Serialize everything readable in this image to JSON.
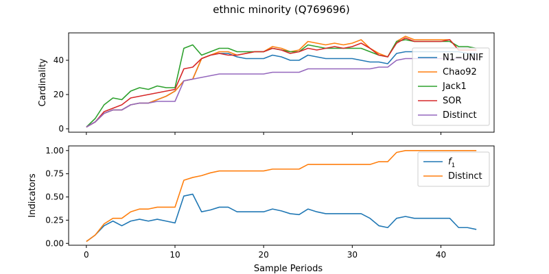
{
  "figure": {
    "title": "ethnic minority (Q769696)"
  },
  "chart_data": [
    {
      "type": "line",
      "ylabel": "Cardinality",
      "xlabel": "",
      "xlim": [
        -2,
        46
      ],
      "ylim": [
        -2,
        56
      ],
      "xticks": [
        0,
        10,
        20,
        30,
        40
      ],
      "yticks": [
        0,
        20,
        40
      ],
      "show_x_tick_labels": false,
      "legend_position": "center-right",
      "x": [
        0,
        1,
        2,
        3,
        4,
        5,
        6,
        7,
        8,
        9,
        10,
        11,
        12,
        13,
        14,
        15,
        16,
        17,
        18,
        19,
        20,
        21,
        22,
        23,
        24,
        25,
        26,
        27,
        28,
        29,
        30,
        31,
        32,
        33,
        34,
        35,
        36,
        37,
        38,
        39,
        40,
        41,
        42,
        43,
        44
      ],
      "series": [
        {
          "name": "N1−UNIF",
          "color": "#1f77b4",
          "values": [
            1,
            4,
            9,
            11,
            11,
            14,
            15,
            15,
            17,
            19,
            22,
            28,
            29,
            41,
            43,
            44,
            44,
            42,
            41,
            41,
            41,
            43,
            42,
            40,
            40,
            43,
            42,
            41,
            41,
            41,
            41,
            40,
            39,
            39,
            38,
            44,
            45,
            45,
            45,
            45,
            45,
            45,
            45,
            44,
            44
          ]
        },
        {
          "name": "Chao92",
          "color": "#ff7f0e",
          "values": [
            1,
            4,
            9,
            11,
            11,
            14,
            15,
            15,
            17,
            19,
            22,
            28,
            29,
            41,
            43,
            45,
            45,
            43,
            44,
            45,
            45,
            48,
            47,
            45,
            46,
            51,
            50,
            49,
            50,
            49,
            50,
            52,
            47,
            44,
            42,
            51,
            54,
            52,
            52,
            52,
            52,
            52,
            46,
            46,
            46
          ]
        },
        {
          "name": "Jack1",
          "color": "#2ca02c",
          "values": [
            1,
            6,
            14,
            18,
            17,
            22,
            24,
            23,
            25,
            24,
            24,
            47,
            49,
            43,
            45,
            47,
            47,
            45,
            45,
            45,
            45,
            47,
            46,
            45,
            45,
            49,
            48,
            47,
            47,
            47,
            47,
            47,
            45,
            43,
            42,
            51,
            52,
            51,
            51,
            51,
            51,
            51,
            48,
            48,
            47
          ]
        },
        {
          "name": "SOR",
          "color": "#d62728",
          "values": [
            1,
            4,
            10,
            12,
            14,
            18,
            19,
            20,
            21,
            22,
            23,
            35,
            36,
            41,
            43,
            44,
            43,
            43,
            44,
            45,
            45,
            47,
            46,
            44,
            45,
            47,
            46,
            47,
            48,
            47,
            48,
            50,
            47,
            43,
            42,
            50,
            53,
            51,
            51,
            51,
            51,
            52,
            46,
            46,
            46
          ]
        },
        {
          "name": "Distinct",
          "color": "#9467bd",
          "values": [
            1,
            4,
            9,
            11,
            11,
            14,
            15,
            15,
            16,
            16,
            16,
            28,
            29,
            30,
            31,
            32,
            32,
            32,
            32,
            32,
            32,
            33,
            33,
            33,
            33,
            35,
            35,
            35,
            35,
            35,
            35,
            35,
            35,
            36,
            36,
            40,
            41,
            41,
            41,
            41,
            41,
            41,
            41,
            41,
            41
          ]
        }
      ]
    },
    {
      "type": "line",
      "ylabel": "Indicators",
      "xlabel": "Sample Periods",
      "xlim": [
        -2,
        46
      ],
      "ylim": [
        -0.02,
        1.05
      ],
      "xticks": [
        0,
        10,
        20,
        30,
        40
      ],
      "yticks": [
        "0.00",
        "0.25",
        "0.50",
        "0.75",
        "1.00"
      ],
      "show_x_tick_labels": true,
      "legend_position": "top-right",
      "x": [
        0,
        1,
        2,
        3,
        4,
        5,
        6,
        7,
        8,
        9,
        10,
        11,
        12,
        13,
        14,
        15,
        16,
        17,
        18,
        19,
        20,
        21,
        22,
        23,
        24,
        25,
        26,
        27,
        28,
        29,
        30,
        31,
        32,
        33,
        34,
        35,
        36,
        37,
        38,
        39,
        40,
        41,
        42,
        43,
        44
      ],
      "series": [
        {
          "name": "f1",
          "label_base": "f",
          "label_sub": "1",
          "color": "#1f77b4",
          "values": [
            0.02,
            0.09,
            0.19,
            0.24,
            0.19,
            0.24,
            0.26,
            0.24,
            0.26,
            0.24,
            0.22,
            0.51,
            0.53,
            0.34,
            0.36,
            0.39,
            0.39,
            0.34,
            0.34,
            0.34,
            0.34,
            0.37,
            0.35,
            0.32,
            0.31,
            0.37,
            0.34,
            0.32,
            0.32,
            0.32,
            0.32,
            0.32,
            0.27,
            0.19,
            0.17,
            0.27,
            0.29,
            0.27,
            0.27,
            0.27,
            0.27,
            0.27,
            0.17,
            0.17,
            0.15
          ]
        },
        {
          "name": "Distinct",
          "color": "#ff7f0e",
          "values": [
            0.02,
            0.09,
            0.21,
            0.27,
            0.27,
            0.34,
            0.37,
            0.37,
            0.39,
            0.39,
            0.39,
            0.68,
            0.71,
            0.73,
            0.76,
            0.78,
            0.78,
            0.78,
            0.78,
            0.78,
            0.78,
            0.8,
            0.8,
            0.8,
            0.8,
            0.85,
            0.85,
            0.85,
            0.85,
            0.85,
            0.85,
            0.85,
            0.85,
            0.88,
            0.88,
            0.98,
            1.0,
            1.0,
            1.0,
            1.0,
            1.0,
            1.0,
            1.0,
            1.0,
            1.0
          ]
        }
      ]
    }
  ]
}
